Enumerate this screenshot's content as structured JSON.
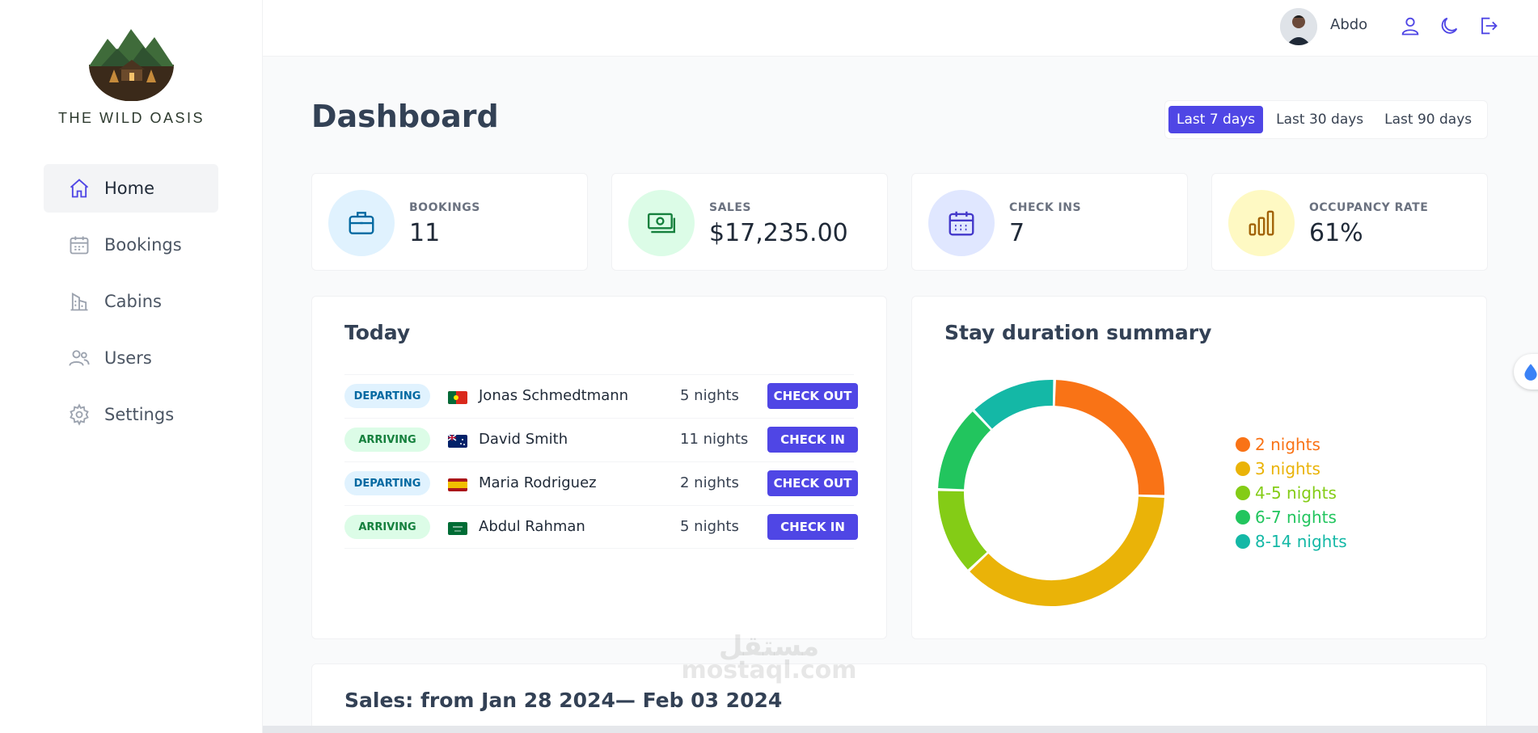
{
  "app": {
    "brand": "THE WILD OASIS"
  },
  "sidebar": {
    "items": [
      {
        "label": "Home",
        "icon": "home-icon",
        "active": true
      },
      {
        "label": "Bookings",
        "icon": "calendar-icon"
      },
      {
        "label": "Cabins",
        "icon": "building-icon"
      },
      {
        "label": "Users",
        "icon": "users-icon"
      },
      {
        "label": "Settings",
        "icon": "gear-icon"
      }
    ]
  },
  "header": {
    "user_name": "Abdo",
    "icons": [
      "user-icon",
      "moon-icon",
      "logout-icon"
    ]
  },
  "page": {
    "title": "Dashboard",
    "filters": [
      "Last 7 days",
      "Last 30 days",
      "Last 90 days"
    ],
    "active_filter": "Last 7 days"
  },
  "stats": [
    {
      "label": "BOOKINGS",
      "value": "11",
      "icon": "briefcase-icon",
      "bg": "#e0f2fe",
      "color": "#0369a1"
    },
    {
      "label": "SALES",
      "value": "$17,235.00",
      "icon": "banknotes-icon",
      "bg": "#dcfce7",
      "color": "#15803d"
    },
    {
      "label": "CHECK INS",
      "value": "7",
      "icon": "calendar-days-icon",
      "bg": "#e0e7ff",
      "color": "#4338ca"
    },
    {
      "label": "OCCUPANCY RATE",
      "value": "61%",
      "icon": "chart-bar-icon",
      "bg": "#fef9c3",
      "color": "#a16207"
    }
  ],
  "today": {
    "title": "Today",
    "rows": [
      {
        "status": "DEPARTING",
        "flag": "pt",
        "guest": "Jonas Schmedtmann",
        "nights": "5 nights",
        "action": "CHECK OUT"
      },
      {
        "status": "ARRIVING",
        "flag": "au",
        "guest": "David Smith",
        "nights": "11 nights",
        "action": "CHECK IN"
      },
      {
        "status": "DEPARTING",
        "flag": "es",
        "guest": "Maria Rodriguez",
        "nights": "2 nights",
        "action": "CHECK OUT"
      },
      {
        "status": "ARRIVING",
        "flag": "sa",
        "guest": "Abdul Rahman",
        "nights": "5 nights",
        "action": "CHECK IN"
      }
    ]
  },
  "stay_summary": {
    "title": "Stay duration summary"
  },
  "chart_data": {
    "type": "pie",
    "title": "Stay duration summary",
    "categories": [
      "2 nights",
      "3 nights",
      "4-5 nights",
      "6-7 nights",
      "8-14 nights"
    ],
    "values": [
      2,
      3,
      1,
      1,
      1
    ],
    "colors": [
      "#f97316",
      "#eab308",
      "#84cc16",
      "#22c55e",
      "#14b8a6"
    ],
    "legend": "right"
  },
  "sales": {
    "title": "Sales: from Jan 28 2024— Feb 03 2024"
  },
  "watermark": {
    "line1": "مستقل",
    "line2": "mostaql.com"
  }
}
